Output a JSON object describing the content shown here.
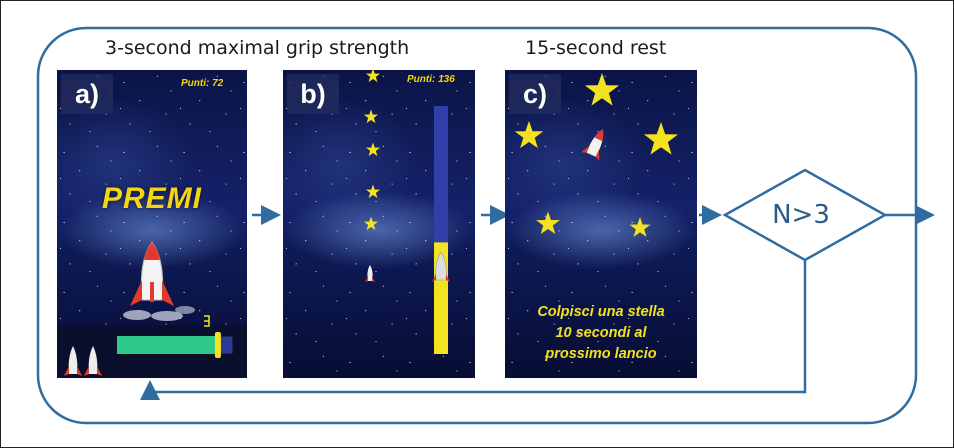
{
  "headings": {
    "grip": "3-second maximal grip strength",
    "rest": "15-second rest"
  },
  "panels": [
    {
      "tag": "a)",
      "score": "Punti: 72",
      "prompt": "PREMI",
      "bar_fill": 0.87
    },
    {
      "tag": "b)",
      "score": "Punti: 136",
      "bar_fill": 0.45
    },
    {
      "tag": "c)",
      "message_lines": [
        "Colpisci una stella",
        "10 secondi al",
        "prossimo lancio"
      ]
    }
  ],
  "decision": {
    "label": "N>3"
  },
  "colors": {
    "flow": "#2f6da1",
    "star": "#f3e21d",
    "bar_green": "#2fc98a",
    "bar_blue": "#2b3a9a",
    "bar_yellow": "#f2e421"
  }
}
